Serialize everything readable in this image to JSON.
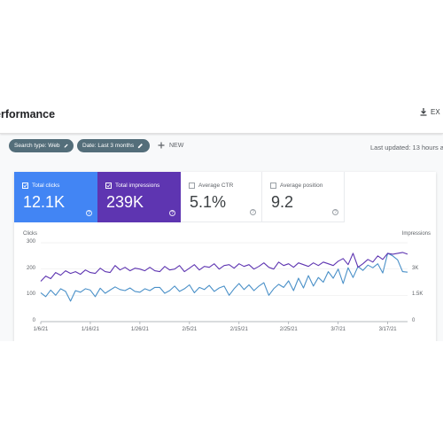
{
  "header": {
    "title": "erformance",
    "export_label": "EX"
  },
  "filters": {
    "search_type": "Search type: Web",
    "date": "Date: Last 3 months",
    "new_label": "NEW",
    "last_updated": "Last updated: 13 hours a"
  },
  "metrics": [
    {
      "label": "Total clicks",
      "value": "12.1K",
      "checked": true,
      "color": "#4285f4"
    },
    {
      "label": "Total impressions",
      "value": "239K",
      "checked": true,
      "color": "#5e35b1"
    },
    {
      "label": "Average CTR",
      "value": "5.1%",
      "checked": false
    },
    {
      "label": "Average position",
      "value": "9.2",
      "checked": false
    }
  ],
  "help_glyph": "?",
  "chart_data": {
    "type": "line",
    "left_axis_title": "Clicks",
    "right_axis_title": "Impressions",
    "left_ticks": [
      "300",
      "200",
      "100",
      "0"
    ],
    "right_ticks": [
      "3K",
      "1.5K",
      "0"
    ],
    "x_ticks": [
      "1/6/21",
      "1/16/21",
      "1/26/21",
      "2/5/21",
      "2/15/21",
      "2/25/21",
      "3/7/21",
      "3/17/21"
    ],
    "left_ylim": [
      0,
      300
    ],
    "right_ylim": [
      0,
      4500
    ],
    "grid": true,
    "series": [
      {
        "name": "Total clicks",
        "axis": "left",
        "color": "#4a90c8",
        "values": [
          110,
          95,
          120,
          100,
          125,
          115,
          78,
          118,
          112,
          125,
          120,
          95,
          127,
          108,
          120,
          132,
          122,
          118,
          128,
          115,
          112,
          125,
          118,
          130,
          130,
          108,
          118,
          135,
          115,
          125,
          140,
          110,
          130,
          122,
          138,
          115,
          128,
          135,
          100,
          125,
          145,
          122,
          140,
          118,
          135,
          148,
          100,
          125,
          142,
          130,
          155,
          118,
          165,
          128,
          175,
          135,
          168,
          150,
          190,
          165,
          200,
          145,
          205,
          168,
          210,
          195,
          215,
          205,
          220,
          185,
          260,
          250,
          235,
          190,
          188
        ]
      },
      {
        "name": "Total impressions",
        "axis": "right",
        "color": "#5e35b1",
        "values": [
          2300,
          2600,
          2450,
          2800,
          2650,
          2900,
          2750,
          2850,
          2700,
          2950,
          2800,
          2750,
          3050,
          2850,
          2800,
          3200,
          2950,
          3100,
          2900,
          3050,
          3000,
          2900,
          3100,
          2900,
          2850,
          3150,
          2950,
          3000,
          3200,
          2850,
          3050,
          3250,
          2950,
          3150,
          3100,
          3300,
          3000,
          3200,
          3250,
          3050,
          3300,
          3150,
          3250,
          3000,
          3150,
          3350,
          3100,
          3000,
          3400,
          3200,
          3300,
          3100,
          3350,
          3250,
          3150,
          3350,
          3200,
          3400,
          3300,
          3200,
          3450,
          3600,
          3250,
          3900,
          3100,
          3300,
          3550,
          3400,
          3750,
          3550,
          3900,
          3850,
          3900,
          3950,
          3850
        ]
      }
    ]
  }
}
